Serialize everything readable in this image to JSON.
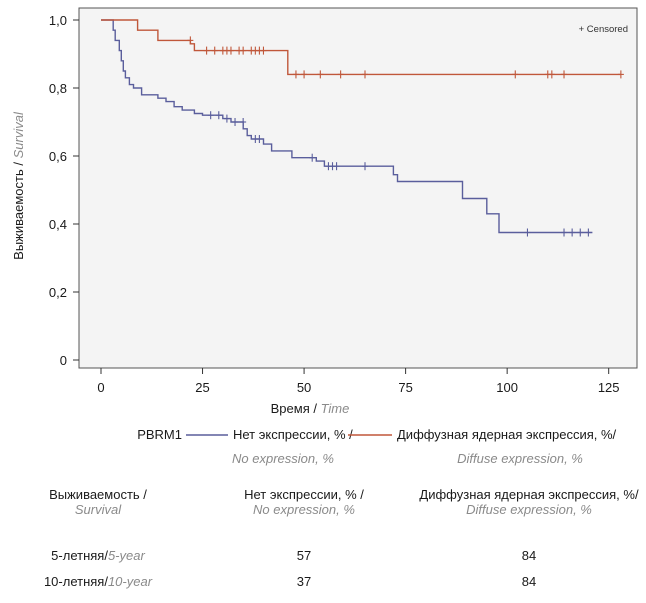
{
  "chart_data": {
    "type": "line",
    "subtype": "kaplan-meier",
    "ylabel": {
      "main": "Выживаемость / ",
      "sub": "Survival"
    },
    "xlabel": {
      "main": "Время / ",
      "sub": "Time"
    },
    "xlim": [
      0,
      130
    ],
    "ylim": [
      0,
      1.0
    ],
    "x_ticks": [
      0,
      25,
      50,
      75,
      100,
      125
    ],
    "x_tick_labels": [
      "0",
      "25",
      "50",
      "75",
      "100",
      "125"
    ],
    "y_ticks": [
      0,
      0.2,
      0.4,
      0.6,
      0.8,
      1.0
    ],
    "y_tick_labels": [
      "0",
      "0,2",
      "0,4",
      "0,6",
      "0,8",
      "1,0"
    ],
    "censored_label": "+ Censored",
    "legend_title": "PBRM1",
    "legend_placement": "bottom",
    "series": [
      {
        "name": "Нет экспрессии, % /",
        "name_sub": "No expression, %",
        "color": "#5a5e9c",
        "steps": [
          [
            0,
            1.0
          ],
          [
            3,
            1.0
          ],
          [
            3,
            0.97
          ],
          [
            3.5,
            0.94
          ],
          [
            4.5,
            0.91
          ],
          [
            5,
            0.88
          ],
          [
            5.5,
            0.85
          ],
          [
            6,
            0.83
          ],
          [
            7,
            0.81
          ],
          [
            8,
            0.8
          ],
          [
            10,
            0.78
          ],
          [
            14,
            0.77
          ],
          [
            16,
            0.76
          ],
          [
            18,
            0.745
          ],
          [
            20,
            0.735
          ],
          [
            23,
            0.725
          ],
          [
            25,
            0.72
          ],
          [
            30,
            0.71
          ],
          [
            32,
            0.7
          ],
          [
            35,
            0.68
          ],
          [
            36,
            0.66
          ],
          [
            37,
            0.65
          ],
          [
            40,
            0.635
          ],
          [
            42,
            0.615
          ],
          [
            47,
            0.595
          ],
          [
            53,
            0.585
          ],
          [
            55,
            0.57
          ],
          [
            72,
            0.545
          ],
          [
            73,
            0.525
          ],
          [
            89,
            0.475
          ],
          [
            95,
            0.43
          ],
          [
            98,
            0.375
          ],
          [
            121,
            0.375
          ]
        ],
        "censored": [
          [
            27,
            0.72
          ],
          [
            29,
            0.72
          ],
          [
            31,
            0.71
          ],
          [
            33,
            0.7
          ],
          [
            35,
            0.7
          ],
          [
            38,
            0.65
          ],
          [
            39,
            0.65
          ],
          [
            52,
            0.595
          ],
          [
            56,
            0.57
          ],
          [
            57,
            0.57
          ],
          [
            58,
            0.57
          ],
          [
            65,
            0.57
          ],
          [
            105,
            0.375
          ],
          [
            114,
            0.375
          ],
          [
            116,
            0.375
          ],
          [
            118,
            0.375
          ],
          [
            120,
            0.375
          ]
        ]
      },
      {
        "name": "Диффузная ядерная экспрессия, %/",
        "name_sub": "Diffuse expression, %",
        "color": "#c0573a",
        "steps": [
          [
            0,
            1.0
          ],
          [
            9,
            1.0
          ],
          [
            9,
            0.97
          ],
          [
            14,
            0.97
          ],
          [
            14,
            0.94
          ],
          [
            22,
            0.94
          ],
          [
            22,
            0.93
          ],
          [
            23,
            0.93
          ],
          [
            23,
            0.91
          ],
          [
            46,
            0.91
          ],
          [
            46,
            0.84
          ],
          [
            128,
            0.84
          ]
        ],
        "censored": [
          [
            22,
            0.94
          ],
          [
            26,
            0.91
          ],
          [
            28,
            0.91
          ],
          [
            30,
            0.91
          ],
          [
            31,
            0.91
          ],
          [
            32,
            0.91
          ],
          [
            34,
            0.91
          ],
          [
            35,
            0.91
          ],
          [
            37,
            0.91
          ],
          [
            38,
            0.91
          ],
          [
            39,
            0.91
          ],
          [
            40,
            0.91
          ],
          [
            48,
            0.84
          ],
          [
            50,
            0.84
          ],
          [
            54,
            0.84
          ],
          [
            59,
            0.84
          ],
          [
            65,
            0.84
          ],
          [
            102,
            0.84
          ],
          [
            110,
            0.84
          ],
          [
            111,
            0.84
          ],
          [
            114,
            0.84
          ],
          [
            128,
            0.84
          ]
        ]
      }
    ]
  },
  "summary_table": {
    "headers": [
      {
        "main": "Выживаемость /",
        "sub": "Survival"
      },
      {
        "main": "Нет экспрессии, % /",
        "sub": "No expression, %"
      },
      {
        "main": "Диффузная ядерная экспрессия, %/",
        "sub": "Diffuse expression, %"
      }
    ],
    "rows": [
      {
        "label_main": "5-летняя/",
        "label_sub": "5-year",
        "no_expression": "57",
        "diffuse": "84"
      },
      {
        "label_main": "10-летняя/",
        "label_sub": "10-year",
        "no_expression": "37",
        "diffuse": "84"
      }
    ]
  }
}
